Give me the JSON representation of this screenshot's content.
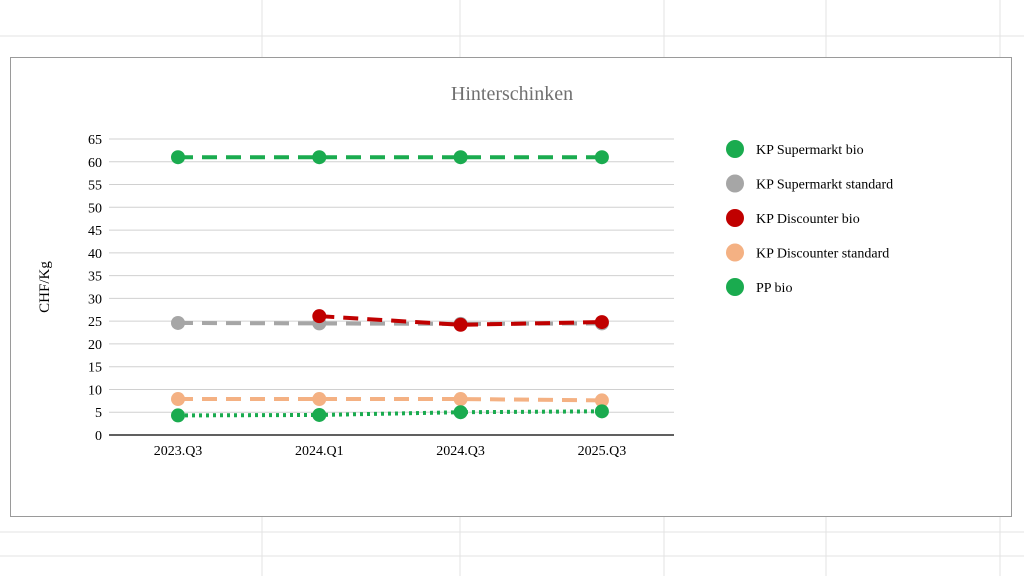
{
  "chart_data": {
    "type": "line",
    "title": "Hinterschinken",
    "xlabel": "",
    "ylabel": "CHF/Kg",
    "categories": [
      "2023.Q3",
      "2024.Q1",
      "2024.Q3",
      "2025.Q3"
    ],
    "ylim": [
      0,
      65
    ],
    "yticks": [
      0,
      5,
      10,
      15,
      20,
      25,
      30,
      35,
      40,
      45,
      50,
      55,
      60,
      65
    ],
    "grid": true,
    "legend": "right",
    "series": [
      {
        "name": "KP Supermarkt bio",
        "color": "#1aab4f",
        "dash": "dashed",
        "values": [
          61,
          61,
          61,
          61
        ]
      },
      {
        "name": "KP Supermarkt standard",
        "color": "#a6a6a6",
        "dash": "dashed",
        "values": [
          24.6,
          24.5,
          24.4,
          24.5
        ]
      },
      {
        "name": "KP Discounter bio",
        "color": "#c00000",
        "dash": "dashed",
        "values": [
          null,
          26.1,
          24.2,
          24.8
        ]
      },
      {
        "name": "KP Discounter standard",
        "color": "#f4b183",
        "dash": "dashed",
        "values": [
          7.9,
          7.9,
          7.9,
          7.6
        ]
      },
      {
        "name": "PP bio",
        "color": "#1aab4f",
        "dash": "dotted",
        "values": [
          4.3,
          4.4,
          5.0,
          5.2
        ]
      }
    ]
  }
}
